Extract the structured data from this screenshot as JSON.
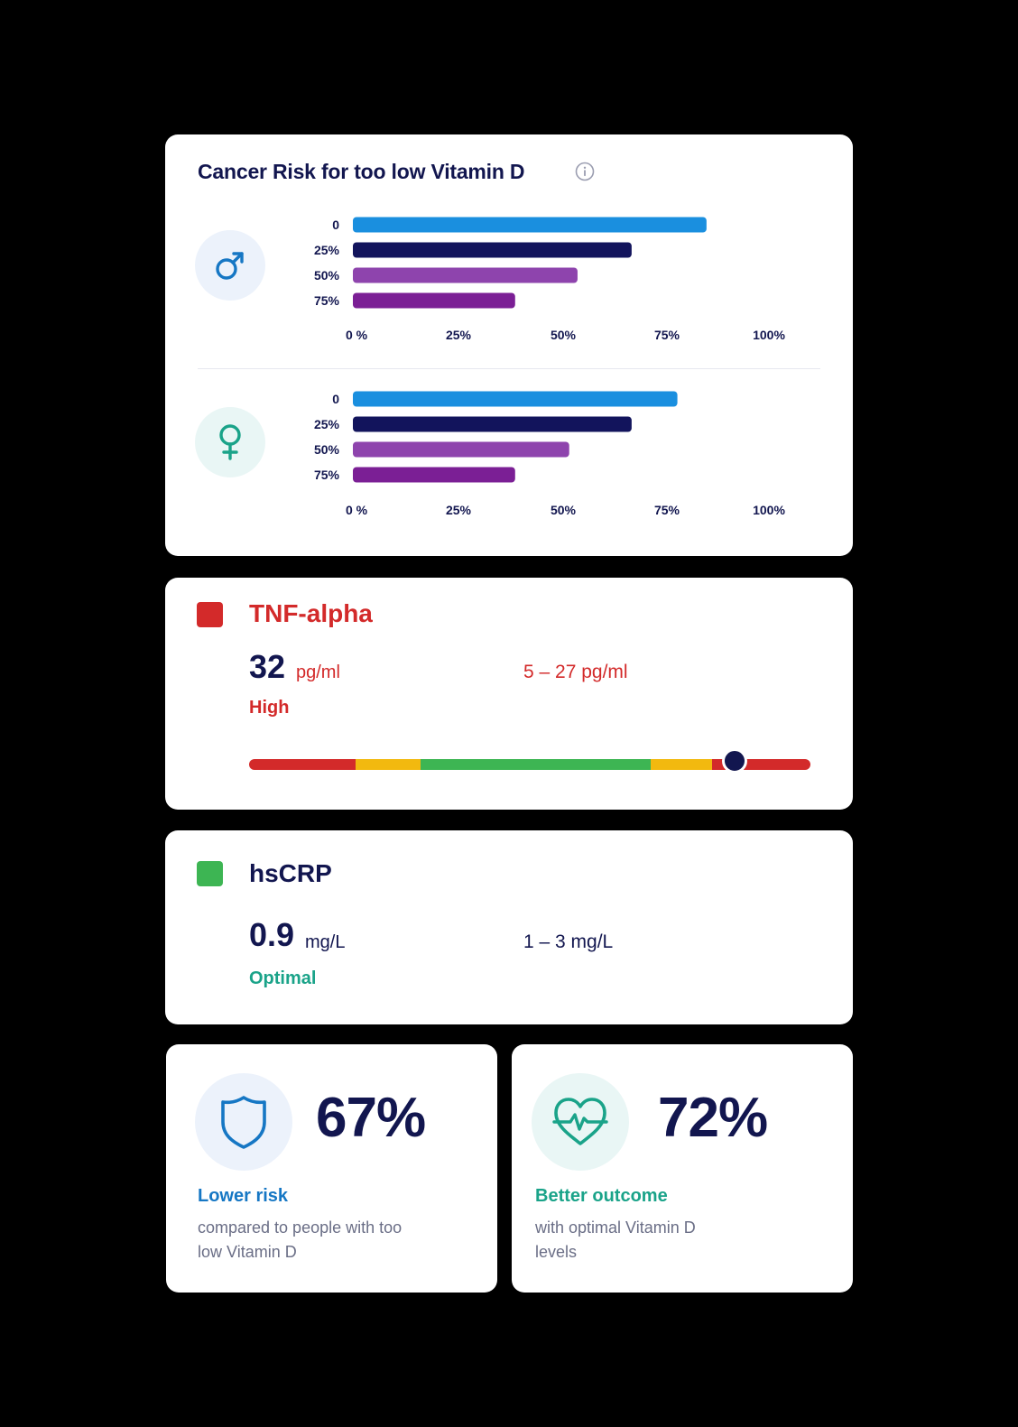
{
  "colors": {
    "navy": "#12164f",
    "red": "#d32a2a",
    "green": "#3db553",
    "teal": "#1aa389",
    "blue": "#1677c4",
    "bar_series": [
      "#1a8fdf",
      "#12145c",
      "#8e44ad",
      "#7b1f95"
    ]
  },
  "cancer_card": {
    "title": "Cancer Risk for too low Vitamin D",
    "male_icon": "male-symbol-icon",
    "female_icon": "female-symbol-icon",
    "info_icon": "info-icon"
  },
  "chart_data": [
    {
      "type": "bar",
      "orientation": "horizontal",
      "categories": [
        "0",
        "25%",
        "50%",
        "75%"
      ],
      "values": [
        85,
        67,
        54,
        39
      ],
      "xlim": [
        0,
        100
      ],
      "xticks": [
        "0 %",
        "25%",
        "50%",
        "75%",
        "100%"
      ],
      "grid": false
    },
    {
      "type": "bar",
      "orientation": "horizontal",
      "categories": [
        "0",
        "25%",
        "50%",
        "75%"
      ],
      "values": [
        78,
        67,
        52,
        39
      ],
      "xlim": [
        0,
        100
      ],
      "xticks": [
        "0 %",
        "25%",
        "50%",
        "75%",
        "100%"
      ],
      "grid": false
    }
  ],
  "tnf": {
    "name": "TNF-alpha",
    "value": "32",
    "unit": "pg/ml",
    "range": "5 – 27 pg/ml",
    "status": "High",
    "marker_position": 0.865,
    "segments": [
      {
        "color": "#d32a2a",
        "fraction": 0.19
      },
      {
        "color": "#f2b90f",
        "fraction": 0.115
      },
      {
        "color": "#3db553",
        "fraction": 0.41
      },
      {
        "color": "#f2b90f",
        "fraction": 0.11
      },
      {
        "color": "#d32a2a",
        "fraction": 0.175
      }
    ]
  },
  "crp": {
    "name": "hsCRP",
    "value": "0.9",
    "unit": "mg/L",
    "range": "1 – 3 mg/L",
    "status": "Optimal"
  },
  "stats": [
    {
      "value": "67%",
      "label": "Lower risk",
      "desc": "compared to people with too low Vitamin D",
      "icon": "shield-icon"
    },
    {
      "value": "72%",
      "label": "Better outcome",
      "desc": "with optimal Vitamin D levels",
      "icon": "heart-pulse-icon"
    }
  ]
}
